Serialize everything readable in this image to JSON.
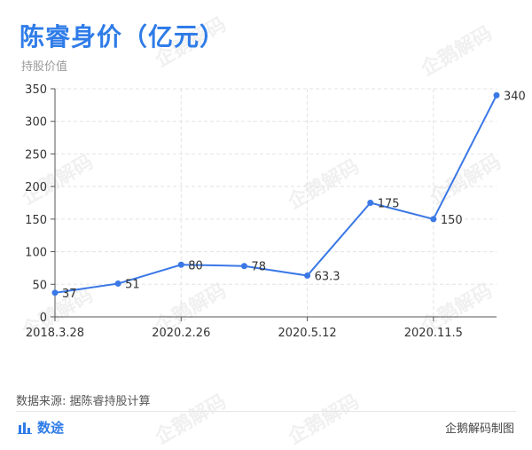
{
  "header": {
    "title": "陈睿身价（亿元）",
    "subtitle": "持股价值"
  },
  "footer": {
    "source": "数据来源: 据陈睿持股计算",
    "brand": "数途",
    "credit": "企鹅解码制图"
  },
  "watermark_text": "企鹅解码",
  "colors": {
    "accent": "#2f7ce8",
    "line": "#3a78e6",
    "grid": "#e3e3e3",
    "axis": "#555555",
    "tick_text": "#333333"
  },
  "chart_data": {
    "type": "line",
    "title": "陈睿身价（亿元）",
    "subtitle": "持股价值",
    "xlabel": "",
    "ylabel": "",
    "categories": [
      "2018.3.28",
      "",
      "2020.2.26",
      "",
      "2020.5.12",
      "",
      "2020.11.5",
      ""
    ],
    "x_tick_labels": [
      "2018.3.28",
      "2020.2.26",
      "2020.5.12",
      "2020.11.5"
    ],
    "values": [
      37,
      51,
      80,
      78,
      63.3,
      175,
      150,
      340
    ],
    "data_labels": [
      "37",
      "51",
      "80",
      "78",
      "63.3",
      "175",
      "150",
      "340"
    ],
    "ylim": [
      0,
      350
    ],
    "y_ticks": [
      0,
      50,
      100,
      150,
      200,
      250,
      300,
      350
    ],
    "grid": true,
    "legend": "none"
  }
}
